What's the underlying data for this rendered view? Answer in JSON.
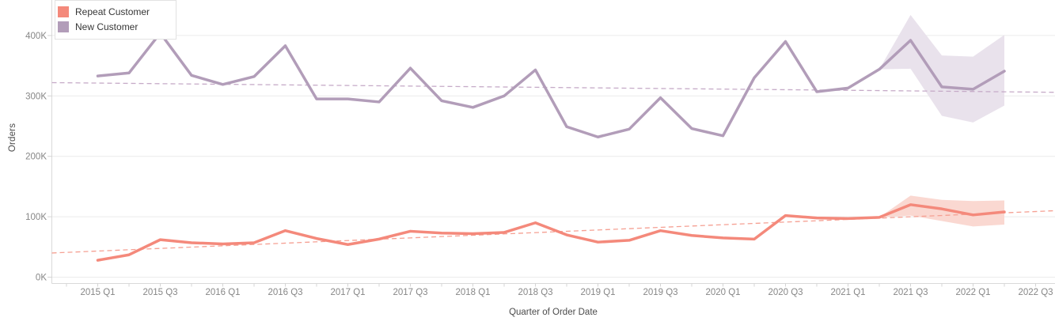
{
  "chart_data": {
    "type": "line",
    "title": "",
    "xlabel": "Quarter of Order Date",
    "ylabel": "Orders",
    "values_unit": "thousands of orders (K)",
    "grid": "horizontal",
    "legend_position": "top-left",
    "ylim": [
      0,
      440
    ],
    "x_quarters": [
      "2015 Q1",
      "2015 Q2",
      "2015 Q3",
      "2015 Q4",
      "2016 Q1",
      "2016 Q2",
      "2016 Q3",
      "2016 Q4",
      "2017 Q1",
      "2017 Q2",
      "2017 Q3",
      "2017 Q4",
      "2018 Q1",
      "2018 Q2",
      "2018 Q3",
      "2018 Q4",
      "2019 Q1",
      "2019 Q2",
      "2019 Q3",
      "2019 Q4",
      "2020 Q1",
      "2020 Q2",
      "2020 Q3",
      "2020 Q4",
      "2021 Q1",
      "2021 Q2",
      "2021 Q3",
      "2021 Q4",
      "2022 Q1",
      "2022 Q2"
    ],
    "x_axis_tick_labels": [
      "2015 Q1",
      "2015 Q3",
      "2016 Q1",
      "2016 Q3",
      "2017 Q1",
      "2017 Q3",
      "2018 Q1",
      "2018 Q3",
      "2019 Q1",
      "2019 Q3",
      "2020 Q1",
      "2020 Q3",
      "2021 Q1",
      "2021 Q3",
      "2022 Q1",
      "2022 Q3"
    ],
    "y_axis_tick_labels": [
      "0K",
      "100K",
      "200K",
      "300K",
      "400K"
    ],
    "y_axis_tick_values": [
      0,
      100,
      200,
      300,
      400
    ],
    "forecast_start_quarter": "2021 Q3",
    "series": [
      {
        "name": "Repeat Customer",
        "color": "#F4897B",
        "trend_color": "#F5A093",
        "band_color": "#FAD8D1",
        "values": [
          28,
          37,
          62,
          57,
          55,
          57,
          77,
          64,
          54,
          63,
          76,
          73,
          72,
          74,
          90,
          70,
          58,
          61,
          77,
          69,
          65,
          63,
          102,
          98,
          97,
          99,
          120,
          113,
          103,
          108
        ],
        "trend": {
          "start": 40,
          "end": 110
        },
        "forecast_band": {
          "start_index": 25,
          "lower": [
            99,
            102,
            93,
            84,
            87
          ],
          "upper": [
            99,
            135,
            128,
            126,
            127
          ]
        }
      },
      {
        "name": "New Customer",
        "color": "#B29DB9",
        "trend_color": "#C6ABC8",
        "band_color": "#E9E2EC",
        "values": [
          333,
          338,
          404,
          334,
          319,
          332,
          383,
          295,
          295,
          290,
          346,
          292,
          281,
          300,
          343,
          249,
          232,
          245,
          297,
          246,
          234,
          330,
          390,
          307,
          313,
          344,
          392,
          315,
          311,
          341
        ],
        "trend": {
          "start": 322,
          "end": 306
        },
        "forecast_band": {
          "start_index": 25,
          "lower": [
            344,
            345,
            267,
            256,
            284
          ],
          "upper": [
            344,
            434,
            367,
            365,
            401
          ]
        }
      }
    ],
    "colors": {
      "background": "#FFFFFF",
      "gridline": "#EBEBEB",
      "axis_line": "#D9D9D9",
      "tick_mark": "#D4D4D4",
      "tick_label": "#878787",
      "axis_title": "#4B4B4B",
      "legend_text": "#363636",
      "legend_border": "#E2E2E2"
    }
  }
}
